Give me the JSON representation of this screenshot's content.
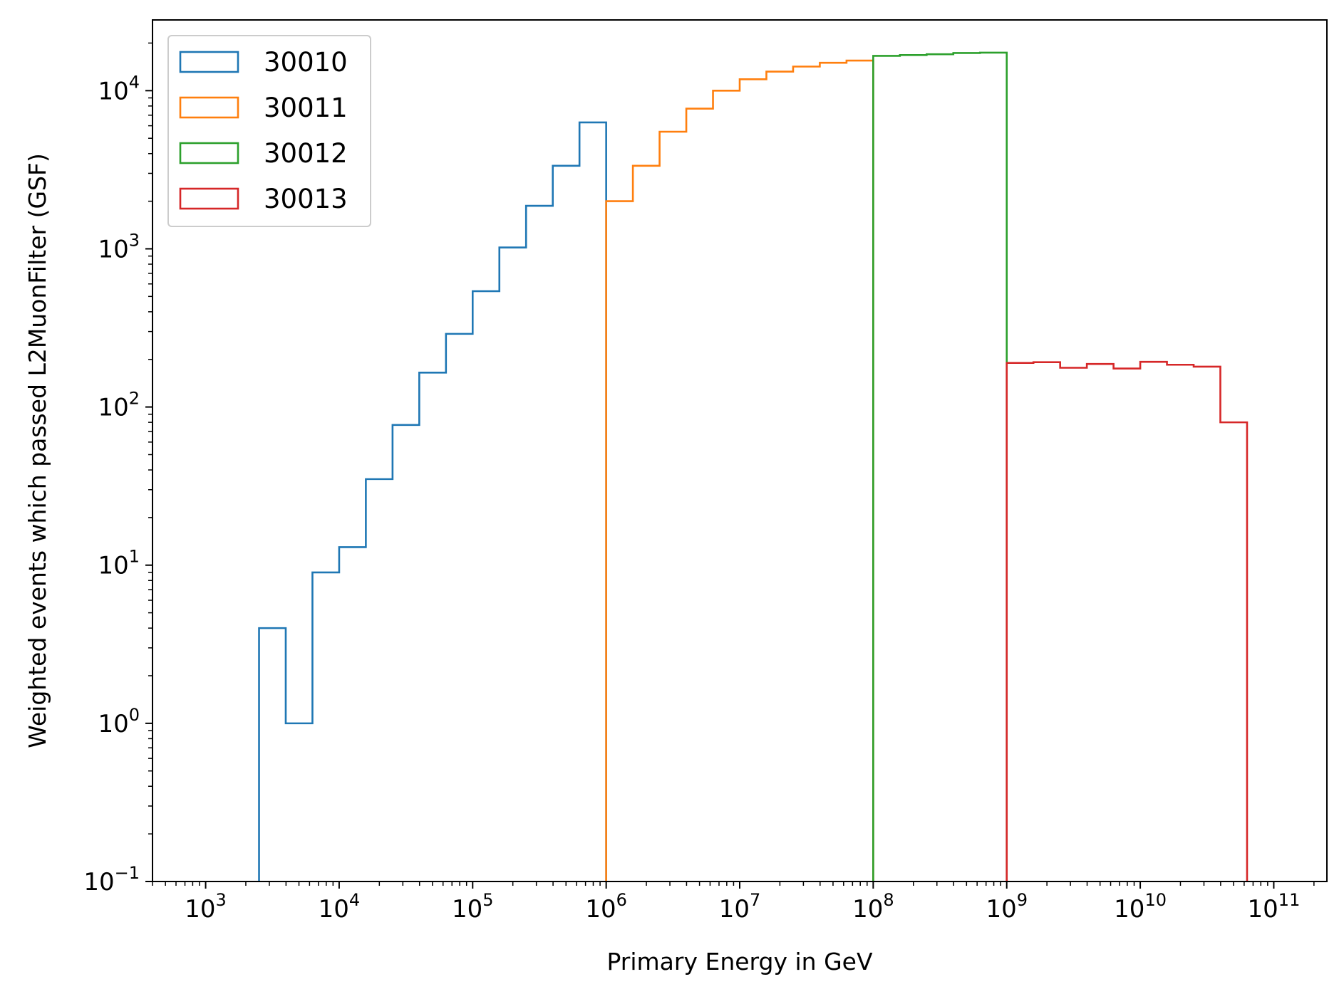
{
  "chart_data": {
    "type": "histogram",
    "title": "",
    "xlabel": "Primary Energy in GeV",
    "ylabel": "Weighted events which passed L2MuonFilter (GSF)",
    "x_scale": "log",
    "y_scale": "log",
    "xlim": [
      400,
      250000000000
    ],
    "ylim": [
      0.1,
      28000
    ],
    "grid": false,
    "legend_position": "upper left",
    "x_ticks": [
      {
        "value": 1000,
        "base": "10",
        "exp": "3"
      },
      {
        "value": 10000,
        "base": "10",
        "exp": "4"
      },
      {
        "value": 100000,
        "base": "10",
        "exp": "5"
      },
      {
        "value": 1000000,
        "base": "10",
        "exp": "6"
      },
      {
        "value": 10000000,
        "base": "10",
        "exp": "7"
      },
      {
        "value": 100000000,
        "base": "10",
        "exp": "8"
      },
      {
        "value": 1000000000,
        "base": "10",
        "exp": "9"
      },
      {
        "value": 10000000000,
        "base": "10",
        "exp": "10"
      },
      {
        "value": 100000000000,
        "base": "10",
        "exp": "11"
      }
    ],
    "y_ticks": [
      {
        "value": 0.1,
        "base": "10",
        "exp": "−1"
      },
      {
        "value": 1,
        "base": "10",
        "exp": "0"
      },
      {
        "value": 10,
        "base": "10",
        "exp": "1"
      },
      {
        "value": 100,
        "base": "10",
        "exp": "2"
      },
      {
        "value": 1000,
        "base": "10",
        "exp": "3"
      },
      {
        "value": 10000,
        "base": "10",
        "exp": "4"
      }
    ],
    "series": [
      {
        "name": "30010",
        "color": "#1f77b4",
        "bin_edges": [
          2512,
          3981,
          6310,
          10000,
          15849,
          25119,
          39811,
          63096,
          100000,
          158489,
          251189,
          398107,
          630957,
          1000000
        ],
        "values": [
          4,
          1,
          9,
          13,
          35,
          77,
          165,
          290,
          540,
          1020,
          1870,
          3350,
          6300
        ]
      },
      {
        "name": "30011",
        "color": "#ff7f0e",
        "bin_edges": [
          1000000,
          1584893,
          2511886,
          3981072,
          6309573,
          10000000,
          15848932,
          25118864,
          39810717,
          63095734,
          100000000
        ],
        "values": [
          2000,
          3350,
          5500,
          7700,
          10000,
          11800,
          13200,
          14200,
          15000,
          15500
        ]
      },
      {
        "name": "30012",
        "color": "#2ca02c",
        "bin_edges": [
          100000000,
          158489319,
          251188643,
          398107171,
          630957344,
          1000000000
        ],
        "values": [
          16600,
          16800,
          17000,
          17300,
          17400
        ]
      },
      {
        "name": "30013",
        "color": "#d62728",
        "bin_edges": [
          1000000000,
          1584893192,
          2511886432,
          3981071706,
          6309573445,
          10000000000,
          15848931925,
          25118864315,
          39810717055,
          63095734448
        ],
        "values": [
          190,
          192,
          177,
          187,
          175,
          193,
          185,
          180,
          80
        ]
      }
    ]
  }
}
